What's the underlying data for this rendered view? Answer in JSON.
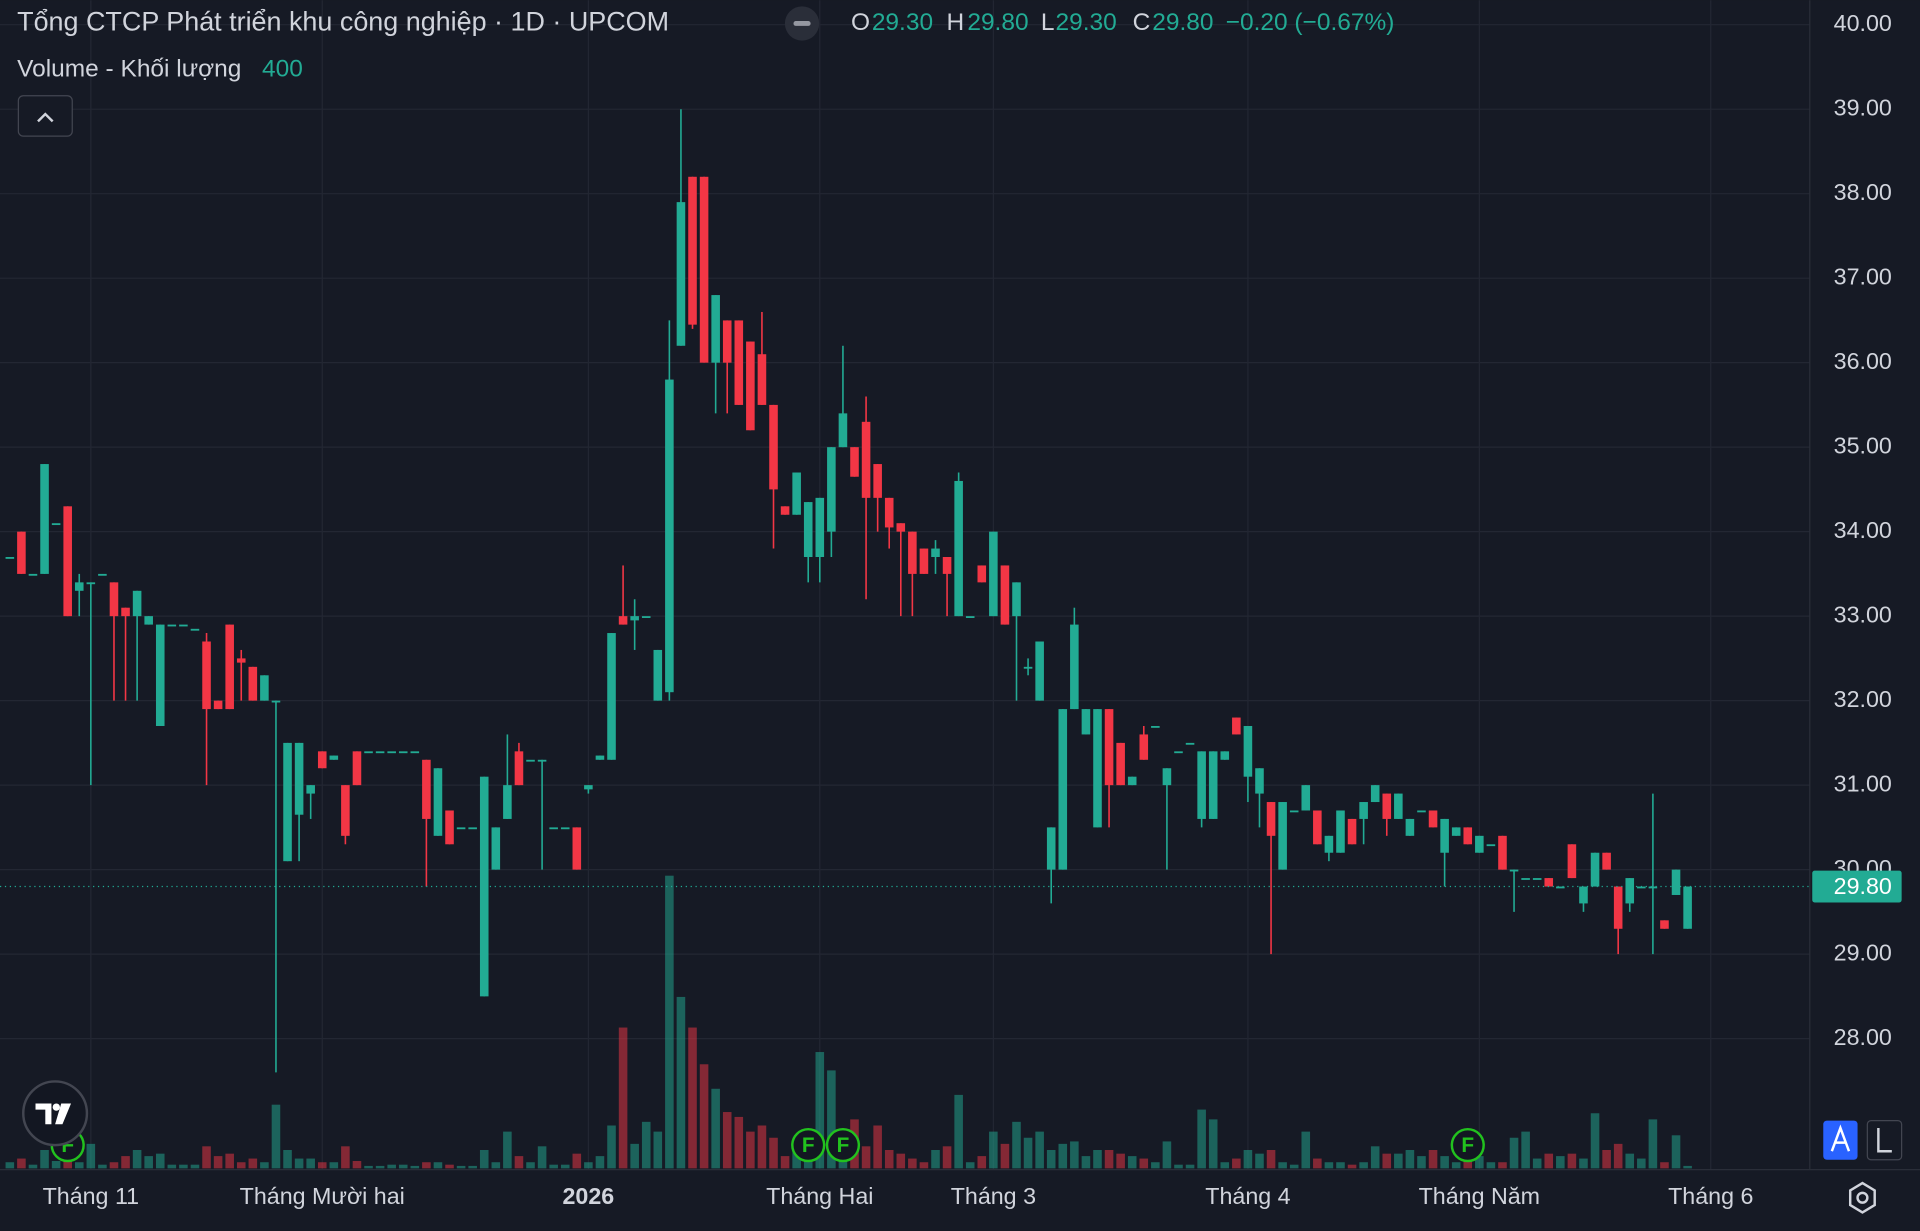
{
  "chart_data": {
    "type": "candlestick",
    "title": "Tổng CTCP Phát triển khu công nghiệp · 1D · UPCOM",
    "legend": {
      "o": "O",
      "o_value": "29.30",
      "h": "H",
      "h_value": "29.80",
      "l": "L",
      "l_value": "29.30",
      "c": "C",
      "c_value": "29.80",
      "change": "−0.20 (−0.67%)"
    },
    "volume_title": "Volume - Khối lượng",
    "up_color": "#22ab94",
    "down_color": "#f23645",
    "grid": true,
    "ylim": [
      26.45,
      40.29
    ],
    "yticks": [
      {
        "value": 40,
        "label": "40.00"
      },
      {
        "value": 39,
        "label": "39.00"
      },
      {
        "value": 38,
        "label": "38.00"
      },
      {
        "value": 37,
        "label": "37.00"
      },
      {
        "value": 36,
        "label": "36.00"
      },
      {
        "value": 35,
        "label": "35.00"
      },
      {
        "value": 34,
        "label": "34.00"
      },
      {
        "value": 33,
        "label": "33.00"
      },
      {
        "value": 32,
        "label": "32.00"
      },
      {
        "value": 31,
        "label": "31.00"
      },
      {
        "value": 30,
        "label": "30.00"
      },
      {
        "value": 29,
        "label": "29.00"
      },
      {
        "value": 28,
        "label": "28.00"
      }
    ],
    "xlim": [
      -0.85,
      155.56
    ],
    "xticks": [
      {
        "value": 7,
        "label": "Tháng 11"
      },
      {
        "value": 27,
        "label": "Tháng Mười hai"
      },
      {
        "value": 50,
        "label": "2026"
      },
      {
        "value": 70,
        "label": "Tháng Hai"
      },
      {
        "value": 85,
        "label": "Tháng 3"
      },
      {
        "value": 107,
        "label": "Tháng 4"
      },
      {
        "value": 127,
        "label": "Tháng Năm"
      },
      {
        "value": 147,
        "label": "Tháng 6"
      }
    ],
    "last_price": {
      "value": 29.8,
      "label": "29.80"
    },
    "events": [
      {
        "index": 5,
        "label": "F"
      },
      {
        "index": 69,
        "label": "F"
      },
      {
        "index": 72,
        "label": "F"
      },
      {
        "index": 126,
        "label": "F"
      }
    ],
    "volume_lim": [
      0,
      191000
    ],
    "ohlc": [
      [
        33.7,
        33.7,
        33.7,
        33.7
      ],
      [
        34.0,
        34.0,
        33.5,
        33.5
      ],
      [
        33.5,
        33.5,
        33.5,
        33.5
      ],
      [
        33.5,
        34.8,
        33.5,
        34.8
      ],
      [
        34.1,
        34.1,
        34.1,
        34.1
      ],
      [
        34.3,
        34.3,
        33.0,
        33.0
      ],
      [
        33.3,
        33.5,
        33.0,
        33.4
      ],
      [
        33.4,
        33.4,
        31.0,
        33.4
      ],
      [
        33.5,
        33.5,
        33.5,
        33.5
      ],
      [
        33.4,
        33.4,
        32.0,
        33.0
      ],
      [
        33.1,
        33.1,
        32.0,
        33.0
      ],
      [
        33.0,
        33.3,
        32.0,
        33.3
      ],
      [
        32.9,
        33.0,
        32.9,
        33.0
      ],
      [
        31.7,
        32.9,
        31.7,
        32.9
      ],
      [
        32.9,
        32.9,
        32.9,
        32.9
      ],
      [
        32.9,
        32.9,
        32.9,
        32.9
      ],
      [
        32.85,
        32.85,
        32.85,
        32.85
      ],
      [
        32.7,
        32.8,
        31.0,
        31.9
      ],
      [
        32.0,
        32.0,
        31.9,
        31.9
      ],
      [
        32.9,
        32.9,
        31.9,
        31.9
      ],
      [
        32.5,
        32.6,
        32.0,
        32.45
      ],
      [
        32.4,
        32.4,
        32.0,
        32.0
      ],
      [
        32.0,
        32.3,
        32.0,
        32.3
      ],
      [
        32.0,
        32.0,
        27.6,
        32.0
      ],
      [
        30.1,
        31.5,
        30.1,
        31.5
      ],
      [
        30.65,
        31.5,
        30.1,
        31.5
      ],
      [
        30.9,
        31.0,
        30.6,
        31.0
      ],
      [
        31.4,
        31.4,
        31.2,
        31.2
      ],
      [
        31.3,
        31.35,
        31.3,
        31.35
      ],
      [
        31.0,
        31.0,
        30.3,
        30.4
      ],
      [
        31.4,
        31.4,
        31.0,
        31.0
      ],
      [
        31.4,
        31.4,
        31.4,
        31.4
      ],
      [
        31.4,
        31.4,
        31.4,
        31.4
      ],
      [
        31.4,
        31.4,
        31.4,
        31.4
      ],
      [
        31.4,
        31.4,
        31.4,
        31.4
      ],
      [
        31.4,
        31.4,
        31.4,
        31.4
      ],
      [
        31.3,
        31.3,
        29.8,
        30.6
      ],
      [
        30.4,
        31.2,
        30.4,
        31.2
      ],
      [
        30.7,
        30.7,
        30.3,
        30.3
      ],
      [
        30.5,
        30.5,
        30.5,
        30.5
      ],
      [
        30.5,
        30.5,
        30.5,
        30.5
      ],
      [
        28.5,
        31.1,
        28.5,
        31.1
      ],
      [
        30.0,
        30.5,
        30.0,
        30.5
      ],
      [
        30.6,
        31.6,
        30.6,
        31.0
      ],
      [
        31.4,
        31.5,
        31.0,
        31.0
      ],
      [
        31.3,
        31.3,
        31.3,
        31.3
      ],
      [
        31.3,
        31.3,
        30.0,
        31.3
      ],
      [
        30.5,
        30.5,
        30.5,
        30.5
      ],
      [
        30.5,
        30.5,
        30.5,
        30.5
      ],
      [
        30.5,
        30.5,
        30.0,
        30.0
      ],
      [
        30.95,
        31.0,
        30.9,
        31.0
      ],
      [
        31.3,
        31.35,
        31.3,
        31.35
      ],
      [
        31.3,
        32.8,
        31.3,
        32.8
      ],
      [
        33.0,
        33.6,
        32.9,
        32.9
      ],
      [
        32.95,
        33.2,
        32.6,
        33.0
      ],
      [
        33.0,
        33.0,
        33.0,
        33.0
      ],
      [
        32.0,
        32.6,
        32.0,
        32.6
      ],
      [
        32.1,
        36.5,
        32.0,
        35.8
      ],
      [
        36.2,
        39.0,
        36.2,
        37.9
      ],
      [
        38.2,
        38.2,
        36.4,
        36.45
      ],
      [
        38.2,
        38.2,
        36.0,
        36.0
      ],
      [
        36.0,
        36.8,
        35.4,
        36.8
      ],
      [
        36.5,
        36.5,
        35.4,
        36.0
      ],
      [
        36.5,
        36.5,
        35.5,
        35.5
      ],
      [
        36.25,
        36.25,
        35.2,
        35.2
      ],
      [
        36.1,
        36.6,
        35.5,
        35.5
      ],
      [
        35.5,
        35.5,
        33.8,
        34.5
      ],
      [
        34.3,
        34.3,
        34.2,
        34.2
      ],
      [
        34.2,
        34.7,
        34.2,
        34.7
      ],
      [
        33.7,
        34.35,
        33.4,
        34.35
      ],
      [
        33.7,
        34.4,
        33.4,
        34.4
      ],
      [
        34.0,
        35.0,
        33.7,
        35.0
      ],
      [
        35.0,
        36.2,
        35.0,
        35.4
      ],
      [
        35.0,
        35.0,
        34.65,
        34.65
      ],
      [
        35.3,
        35.6,
        33.2,
        34.4
      ],
      [
        34.8,
        34.8,
        34.0,
        34.4
      ],
      [
        34.4,
        34.4,
        33.8,
        34.05
      ],
      [
        34.1,
        34.1,
        33.0,
        34.0
      ],
      [
        34.0,
        34.0,
        33.0,
        33.5
      ],
      [
        33.8,
        33.8,
        33.5,
        33.5
      ],
      [
        33.7,
        33.9,
        33.5,
        33.8
      ],
      [
        33.7,
        33.7,
        33.0,
        33.5
      ],
      [
        33.0,
        34.7,
        33.0,
        34.6
      ],
      [
        33.0,
        33.0,
        33.0,
        33.0
      ],
      [
        33.6,
        33.6,
        33.4,
        33.4
      ],
      [
        33.0,
        34.0,
        33.0,
        34.0
      ],
      [
        33.6,
        33.6,
        32.9,
        32.9
      ],
      [
        33.0,
        33.4,
        32.0,
        33.4
      ],
      [
        32.4,
        32.5,
        32.3,
        32.4
      ],
      [
        32.0,
        32.7,
        32.0,
        32.7
      ],
      [
        30.0,
        30.5,
        29.6,
        30.5
      ],
      [
        30.0,
        31.9,
        30.0,
        31.9
      ],
      [
        31.9,
        33.1,
        31.9,
        32.9
      ],
      [
        31.6,
        31.9,
        31.6,
        31.9
      ],
      [
        30.5,
        31.9,
        30.5,
        31.9
      ],
      [
        31.9,
        31.9,
        30.5,
        31.0
      ],
      [
        31.5,
        31.5,
        31.0,
        31.0
      ],
      [
        31.0,
        31.1,
        31.0,
        31.1
      ],
      [
        31.6,
        31.7,
        31.3,
        31.3
      ],
      [
        31.7,
        31.7,
        31.7,
        31.7
      ],
      [
        31.0,
        31.2,
        30.0,
        31.2
      ],
      [
        31.4,
        31.4,
        31.4,
        31.4
      ],
      [
        31.5,
        31.5,
        31.5,
        31.5
      ],
      [
        30.6,
        31.4,
        30.5,
        31.4
      ],
      [
        30.6,
        31.4,
        30.6,
        31.4
      ],
      [
        31.3,
        31.4,
        31.3,
        31.4
      ],
      [
        31.8,
        31.8,
        31.6,
        31.6
      ],
      [
        31.1,
        31.7,
        30.8,
        31.7
      ],
      [
        30.9,
        31.2,
        30.5,
        31.2
      ],
      [
        30.8,
        30.8,
        29.0,
        30.4
      ],
      [
        30.0,
        30.8,
        30.0,
        30.8
      ],
      [
        30.7,
        30.7,
        30.7,
        30.7
      ],
      [
        30.7,
        31.0,
        30.7,
        31.0
      ],
      [
        30.7,
        30.7,
        30.3,
        30.3
      ],
      [
        30.2,
        30.4,
        30.1,
        30.4
      ],
      [
        30.2,
        30.7,
        30.2,
        30.7
      ],
      [
        30.6,
        30.6,
        30.3,
        30.3
      ],
      [
        30.6,
        30.8,
        30.3,
        30.8
      ],
      [
        30.8,
        31.0,
        30.8,
        31.0
      ],
      [
        30.9,
        30.9,
        30.4,
        30.6
      ],
      [
        30.6,
        30.9,
        30.6,
        30.9
      ],
      [
        30.4,
        30.6,
        30.4,
        30.6
      ],
      [
        30.7,
        30.7,
        30.7,
        30.7
      ],
      [
        30.7,
        30.7,
        30.5,
        30.5
      ],
      [
        30.2,
        30.6,
        29.8,
        30.6
      ],
      [
        30.4,
        30.5,
        30.4,
        30.5
      ],
      [
        30.5,
        30.5,
        30.3,
        30.3
      ],
      [
        30.2,
        30.4,
        30.2,
        30.4
      ],
      [
        30.3,
        30.3,
        30.3,
        30.3
      ],
      [
        30.4,
        30.4,
        30.0,
        30.0
      ],
      [
        30.0,
        30.0,
        29.5,
        30.0
      ],
      [
        29.9,
        29.9,
        29.9,
        29.9
      ],
      [
        29.9,
        29.9,
        29.9,
        29.9
      ],
      [
        29.9,
        29.9,
        29.8,
        29.8
      ],
      [
        29.8,
        29.8,
        29.8,
        29.8
      ],
      [
        30.3,
        30.3,
        29.9,
        29.9
      ],
      [
        29.6,
        29.8,
        29.5,
        29.8
      ],
      [
        29.8,
        30.2,
        29.8,
        30.2
      ],
      [
        30.2,
        30.2,
        30.0,
        30.0
      ],
      [
        29.8,
        29.8,
        29.0,
        29.3
      ],
      [
        29.6,
        29.9,
        29.5,
        29.9
      ],
      [
        29.8,
        29.8,
        29.8,
        29.8
      ],
      [
        29.8,
        30.9,
        29.0,
        29.8
      ],
      [
        29.4,
        29.4,
        29.3,
        29.3
      ],
      [
        29.7,
        30.0,
        29.7,
        30.0
      ],
      [
        29.3,
        29.8,
        29.3,
        29.8
      ]
    ],
    "volume": [
      1000,
      1600,
      600,
      3000,
      1200,
      4000,
      1000,
      4000,
      600,
      1000,
      2000,
      3000,
      2000,
      2400,
      600,
      600,
      600,
      3600,
      2000,
      2400,
      1000,
      1600,
      1000,
      10400,
      3000,
      1600,
      1600,
      1000,
      1000,
      3600,
      1200,
      400,
      400,
      600,
      600,
      400,
      1000,
      1000,
      600,
      400,
      400,
      3000,
      1000,
      6000,
      2000,
      1000,
      3600,
      600,
      600,
      2400,
      1000,
      2000,
      7000,
      23000,
      4000,
      7600,
      6000,
      47800,
      28000,
      23000,
      17000,
      13000,
      9200,
      8400,
      6000,
      7000,
      5000,
      2000,
      3000,
      2000,
      19000,
      16000,
      6000,
      8000,
      3600,
      7000,
      3000,
      2400,
      1600,
      1000,
      3000,
      3600,
      12000,
      1000,
      2000,
      6000,
      4000,
      7600,
      5000,
      6000,
      3000,
      4000,
      4400,
      2000,
      3000,
      3000,
      2400,
      2000,
      1600,
      1000,
      4400,
      600,
      600,
      9600,
      8000,
      1000,
      1600,
      3000,
      2400,
      3000,
      1000,
      600,
      6000,
      1600,
      1000,
      1000,
      600,
      1000,
      3600,
      2400,
      2400,
      3000,
      2000,
      3000,
      2000,
      1000,
      4000,
      2000,
      1000,
      1000,
      5000,
      6000,
      1600,
      2400,
      2000,
      2400,
      1600,
      9000,
      3000,
      4000,
      2400,
      1600,
      8000,
      1000,
      5400,
      400
    ]
  }
}
